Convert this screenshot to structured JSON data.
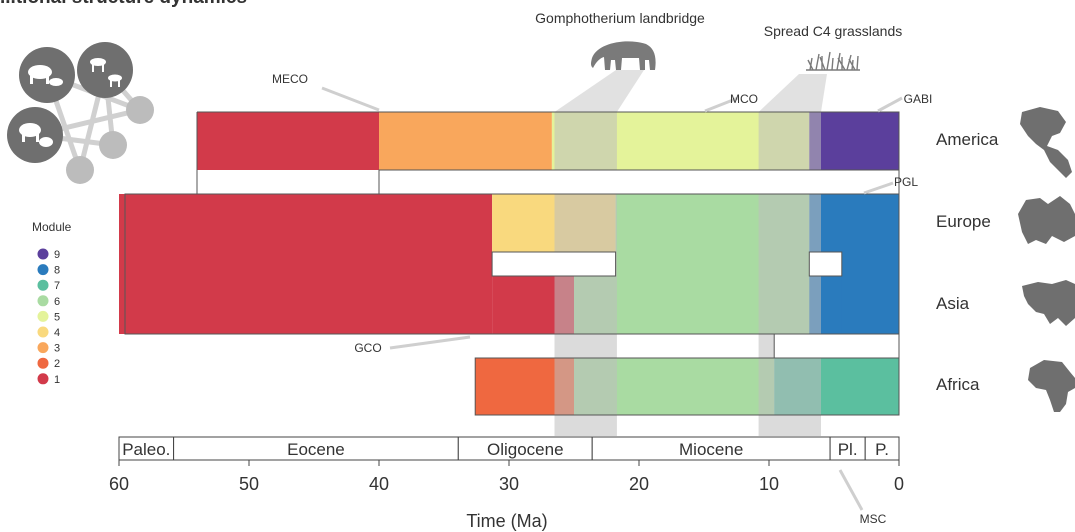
{
  "chart_data": {
    "type": "area",
    "title": "",
    "title_partial": "...tional structure dynamics",
    "xlabel": "Time (Ma)",
    "ylabel": "",
    "xlim": [
      60,
      0
    ],
    "x_ticks": [
      60,
      50,
      40,
      30,
      20,
      10,
      0
    ],
    "rows": [
      "America",
      "Europe",
      "Asia",
      "Africa"
    ],
    "legend": {
      "title": "Module",
      "entries": [
        {
          "label": "9",
          "color": "#5b3f9c"
        },
        {
          "label": "8",
          "color": "#2a7bbd"
        },
        {
          "label": "7",
          "color": "#5bbf9f"
        },
        {
          "label": "6",
          "color": "#a9dba2"
        },
        {
          "label": "5",
          "color": "#e4f39a"
        },
        {
          "label": "4",
          "color": "#f9d97e"
        },
        {
          "label": "3",
          "color": "#f9a75c"
        },
        {
          "label": "2",
          "color": "#ef6840"
        },
        {
          "label": "1",
          "color": "#d23a4a"
        }
      ]
    },
    "modules": [
      {
        "module": "1",
        "color": "#d23a4a",
        "blocks": [
          {
            "rows": "America",
            "start": 54,
            "end": 40
          },
          {
            "rows": "Europe-Asia",
            "start": 60,
            "end": 31.3
          },
          {
            "rows": "Asia",
            "start": 31.3,
            "end": 25
          }
        ]
      },
      {
        "module": "3",
        "color": "#f9a75c",
        "blocks": [
          {
            "rows": "America",
            "start": 40,
            "end": 26.7
          }
        ]
      },
      {
        "module": "5",
        "color": "#e4f39a",
        "blocks": [
          {
            "rows": "America",
            "start": 26.7,
            "end": 6.9
          }
        ]
      },
      {
        "module": "9",
        "color": "#5b3f9c",
        "blocks": [
          {
            "rows": "America",
            "start": 6.9,
            "end": 0
          }
        ]
      },
      {
        "module": "4",
        "color": "#f9d97e",
        "blocks": [
          {
            "rows": "Europe",
            "start": 31.3,
            "end": 21.8
          }
        ]
      },
      {
        "module": "6",
        "color": "#a9dba2",
        "blocks": [
          {
            "rows": "Europe-Asia",
            "start": 21.8,
            "end": 6.9
          },
          {
            "rows": "Asia",
            "start": 25,
            "end": 4.4
          },
          {
            "rows": "Africa",
            "start": 25,
            "end": 9.6
          }
        ]
      },
      {
        "module": "8",
        "color": "#2a7bbd",
        "blocks": [
          {
            "rows": "Europe-Asia",
            "start": 6.9,
            "end": 0
          },
          {
            "rows": "Asia",
            "start": 4.4,
            "end": 0
          }
        ]
      },
      {
        "module": "2",
        "color": "#ef6840",
        "blocks": [
          {
            "rows": "Africa",
            "start": 32.6,
            "end": 25
          }
        ]
      },
      {
        "module": "7",
        "color": "#5bbf9f",
        "blocks": [
          {
            "rows": "Africa",
            "start": 9.6,
            "end": 0
          }
        ]
      }
    ],
    "shaded_intervals": [
      {
        "label": "Gomphotherium landbridge",
        "start": 26.5,
        "end": 21.7
      },
      {
        "label": "Spread C4 grasslands",
        "start": 10.8,
        "end": 6
      }
    ],
    "events": [
      {
        "label": "MECO",
        "time": 40
      },
      {
        "label": "MCO",
        "time": 15
      },
      {
        "label": "GABI",
        "time": 2.7
      },
      {
        "label": "PGL",
        "time": 1.5
      },
      {
        "label": "GCO",
        "time": 33
      },
      {
        "label": "MSC",
        "time": 5.5
      }
    ],
    "epochs": [
      {
        "label": "Paleo.",
        "start": 60,
        "end": 55.8
      },
      {
        "label": "Eocene",
        "start": 55.8,
        "end": 33.9
      },
      {
        "label": "Oligocene",
        "start": 33.9,
        "end": 23.6
      },
      {
        "label": "Miocene",
        "start": 23.6,
        "end": 5.3
      },
      {
        "label": "Pl.",
        "start": 5.3,
        "end": 2.6
      },
      {
        "label": "P.",
        "start": 2.6,
        "end": 0
      }
    ]
  },
  "colors": {
    "shade": "#c7c7c7",
    "icon_gray": "#6f6f6f",
    "network_node": "#b9b9b9",
    "gap_fill": "#f2f2f2"
  }
}
